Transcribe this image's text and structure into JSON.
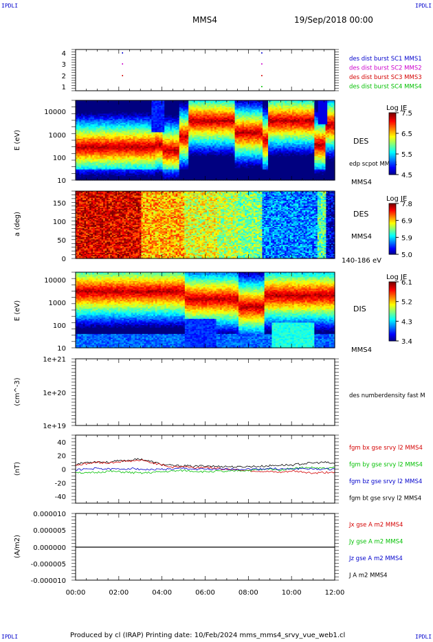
{
  "corner_label": "IPDLI",
  "header": {
    "spacecraft": "MMS4",
    "date_time": "19/Sep/2018 00:00"
  },
  "footer": "Produced by cl (IRAP)   Printing date: 10/Feb/2024   mms_mms4_srvy_vue_web1.cl",
  "time_ticks": [
    "00:00",
    "02:00",
    "04:00",
    "06:00",
    "08:00",
    "10:00",
    "12:00"
  ],
  "colors": {
    "red": "#d40000",
    "green": "#00c000",
    "blue": "#0000cc",
    "magenta": "#cc00cc",
    "black": "#000000",
    "frame": "#000000"
  },
  "chart_data": [
    {
      "type": "scatter",
      "panel": "burst",
      "ylim": [
        0.5,
        4.5
      ],
      "yticks": [
        "1",
        "2",
        "3",
        "4"
      ],
      "legend": [
        {
          "label": "des dist burst SC1 MMS1",
          "color": "#0000cc"
        },
        {
          "label": "des dist burst SC2 MMS2",
          "color": "#cc00cc"
        },
        {
          "label": "des dist burst SC3 MMS3",
          "color": "#d40000"
        },
        {
          "label": "des dist burst SC4 MMS4",
          "color": "#00c000"
        }
      ],
      "x": [
        2.15,
        8.6
      ],
      "series": [
        {
          "name": "MMS1",
          "y": 4,
          "x": [
            2.15,
            8.6
          ]
        },
        {
          "name": "MMS2",
          "y": 3,
          "x": [
            2.15,
            8.6
          ]
        },
        {
          "name": "MMS3",
          "y": 2,
          "x": [
            2.15,
            8.6
          ]
        },
        {
          "name": "MMS4",
          "y": 1,
          "x": [
            8.6
          ]
        }
      ]
    },
    {
      "type": "heatmap",
      "panel": "des_energy",
      "ylabel": "E (eV)",
      "yticks": [
        "10",
        "100",
        "1000",
        "10000"
      ],
      "ylim_log10": [
        1,
        4.3
      ],
      "right_label": "DES",
      "under_label": "edp scpot MMS4",
      "bottom_label": "MMS4",
      "colorbar": {
        "title": "Log JE",
        "ticks": [
          "7.5",
          "6.5",
          "5.5",
          "4.5"
        ],
        "range": [
          4.5,
          7.5
        ]
      }
    },
    {
      "type": "heatmap",
      "panel": "des_pitch",
      "ylabel": "a (deg)",
      "yticks": [
        "0",
        "50",
        "100",
        "150"
      ],
      "ylim": [
        0,
        180
      ],
      "right_label": "DES",
      "mid_label": "MMS4",
      "bottom_label": "140-186 eV",
      "colorbar": {
        "title": "Log JE",
        "ticks": [
          "7.8",
          "6.9",
          "5.9",
          "5.0"
        ],
        "range": [
          5.0,
          7.8
        ]
      }
    },
    {
      "type": "heatmap",
      "panel": "dis_energy",
      "ylabel": "E (eV)",
      "yticks": [
        "10",
        "100",
        "1000",
        "10000"
      ],
      "ylim_log10": [
        1,
        4.3
      ],
      "right_label": "DIS",
      "bottom_label": "MMS4",
      "colorbar": {
        "title": "Log JE",
        "ticks": [
          "6.1",
          "5.2",
          "4.3",
          "3.4"
        ],
        "range": [
          3.4,
          6.1
        ]
      }
    },
    {
      "type": "line",
      "panel": "density",
      "ylabel": "(cm^-3)",
      "yticks": [
        "1e+21",
        "1e+20",
        "1e+19"
      ],
      "legend": [
        {
          "label": "des numberdensity fast M",
          "color": "#000000"
        }
      ]
    },
    {
      "type": "line",
      "panel": "bfield",
      "ylabel": "(nT)",
      "yticks": [
        "40",
        "20",
        "0",
        "-20",
        "-40"
      ],
      "ylim": [
        -50,
        50
      ],
      "legend": [
        {
          "label": "fgm bx gse srvy l2 MMS4",
          "color": "#d40000"
        },
        {
          "label": "fgm by gse srvy l2 MMS4",
          "color": "#00c000"
        },
        {
          "label": "fgm bz gse srvy l2 MMS4",
          "color": "#0000cc"
        },
        {
          "label": "fgm bt gse srvy l2 MMS4",
          "color": "#000000"
        }
      ],
      "x": [
        0,
        0.5,
        1,
        1.5,
        2,
        2.5,
        3,
        3.5,
        4,
        4.5,
        5,
        5.5,
        6,
        6.5,
        7,
        7.5,
        8,
        8.5,
        9,
        9.5,
        10,
        10.5,
        11,
        11.5,
        12
      ],
      "series": [
        {
          "name": "bx",
          "values": [
            6,
            8,
            10,
            9,
            11,
            12,
            13,
            10,
            6,
            3,
            4,
            2,
            3,
            1,
            0,
            -1,
            -2,
            -3,
            -4,
            -5,
            -3,
            -4,
            -6,
            -5,
            -4
          ]
        },
        {
          "name": "by",
          "values": [
            -4,
            -6,
            -5,
            -3,
            -4,
            -5,
            -6,
            -5,
            -4,
            -3,
            -2,
            -3,
            -4,
            -3,
            -4,
            -2,
            -2,
            -1,
            0,
            -1,
            1,
            2,
            2,
            1,
            2
          ]
        },
        {
          "name": "bz",
          "values": [
            -1,
            0,
            1,
            0,
            0,
            1,
            0,
            -1,
            0,
            0,
            1,
            0,
            0,
            -1,
            0,
            0,
            0,
            0,
            1,
            0,
            0,
            1,
            0,
            0,
            0
          ]
        },
        {
          "name": "bt",
          "values": [
            7,
            10,
            11,
            10,
            12,
            13,
            15,
            11,
            7,
            5,
            5,
            4,
            5,
            4,
            4,
            3,
            4,
            4,
            5,
            6,
            6,
            8,
            9,
            10,
            8
          ]
        }
      ]
    },
    {
      "type": "line",
      "panel": "current",
      "ylabel": "(A/m2)",
      "yticks": [
        "0.000010",
        "0.000005",
        "0.000000",
        "-0.000005",
        "-0.000010"
      ],
      "ylim": [
        -1e-05,
        1e-05
      ],
      "legend": [
        {
          "label": "Jx gse A m2 MMS4",
          "color": "#d40000"
        },
        {
          "label": "Jy gse A m2 MMS4",
          "color": "#00c000"
        },
        {
          "label": "Jz gse A m2 MMS4",
          "color": "#0000cc"
        },
        {
          "label": "J A m2 MMS4",
          "color": "#000000"
        }
      ],
      "series": [
        {
          "name": "J",
          "values": [
            0,
            0,
            0,
            0,
            0,
            0,
            0,
            0,
            0,
            0,
            0,
            0,
            0
          ]
        }
      ]
    }
  ]
}
